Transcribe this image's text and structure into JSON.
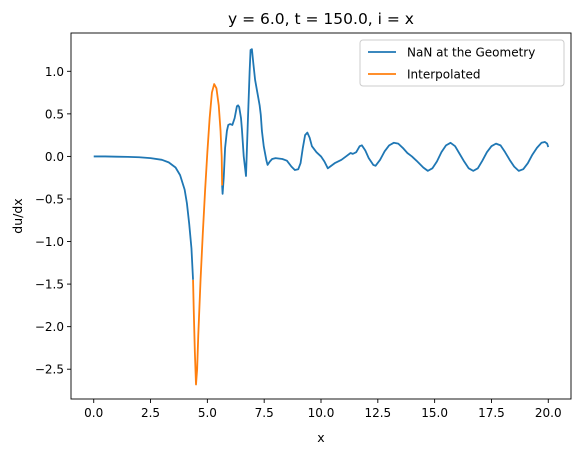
{
  "chart_data": {
    "type": "line",
    "title": "y = 6.0, t = 150.0, i = x",
    "xlabel": "x",
    "ylabel": "du/dx",
    "xlim": [
      -1.0,
      21.0
    ],
    "ylim": [
      -2.85,
      1.45
    ],
    "x_ticks": [
      0.0,
      2.5,
      5.0,
      7.5,
      10.0,
      12.5,
      15.0,
      17.5,
      20.0
    ],
    "x_tick_labels": [
      "0.0",
      "2.5",
      "5.0",
      "7.5",
      "10.0",
      "12.5",
      "15.0",
      "17.5",
      "20.0"
    ],
    "y_ticks": [
      1.0,
      0.5,
      0.0,
      -0.5,
      -1.0,
      -1.5,
      -2.0,
      -2.5
    ],
    "y_tick_labels": [
      "1.0",
      "0.5",
      "0.0",
      "−0.5",
      "−1.0",
      "−1.5",
      "−2.0",
      "−2.5"
    ],
    "grid": false,
    "legend_position": "top-right",
    "series": [
      {
        "name": "NaN at the Geometry",
        "color": "#1f77b4",
        "segments": [
          [
            [
              0.0,
              0.0
            ],
            [
              0.5,
              0.0
            ],
            [
              1.0,
              -0.003
            ],
            [
              1.5,
              -0.005
            ],
            [
              2.0,
              -0.01
            ],
            [
              2.5,
              -0.02
            ],
            [
              3.0,
              -0.04
            ],
            [
              3.3,
              -0.07
            ],
            [
              3.6,
              -0.13
            ],
            [
              3.8,
              -0.22
            ],
            [
              4.0,
              -0.39
            ],
            [
              4.1,
              -0.55
            ],
            [
              4.2,
              -0.79
            ],
            [
              4.3,
              -1.08
            ],
            [
              4.37,
              -1.45
            ]
          ],
          [
            [
              5.65,
              -0.34
            ],
            [
              5.67,
              -0.44
            ],
            [
              5.72,
              -0.25
            ],
            [
              5.78,
              0.1
            ],
            [
              5.86,
              0.3
            ],
            [
              5.92,
              0.37
            ],
            [
              6.0,
              0.38
            ],
            [
              6.1,
              0.37
            ],
            [
              6.2,
              0.45
            ],
            [
              6.3,
              0.59
            ],
            [
              6.35,
              0.6
            ],
            [
              6.4,
              0.58
            ],
            [
              6.48,
              0.45
            ],
            [
              6.52,
              0.32
            ],
            [
              6.6,
              0.0
            ],
            [
              6.7,
              -0.23
            ],
            [
              6.78,
              0.4
            ],
            [
              6.86,
              1.0
            ],
            [
              6.9,
              1.25
            ],
            [
              6.96,
              1.26
            ],
            [
              7.02,
              1.1
            ],
            [
              7.1,
              0.9
            ],
            [
              7.2,
              0.75
            ],
            [
              7.3,
              0.6
            ],
            [
              7.35,
              0.49
            ],
            [
              7.4,
              0.3
            ],
            [
              7.48,
              0.12
            ],
            [
              7.55,
              0.02
            ],
            [
              7.6,
              -0.05
            ],
            [
              7.65,
              -0.1
            ],
            [
              7.75,
              -0.06
            ],
            [
              7.85,
              -0.03
            ],
            [
              8.0,
              -0.02
            ],
            [
              8.3,
              -0.03
            ],
            [
              8.5,
              -0.05
            ],
            [
              8.7,
              -0.12
            ],
            [
              8.85,
              -0.16
            ],
            [
              9.0,
              -0.15
            ],
            [
              9.1,
              -0.08
            ],
            [
              9.2,
              0.1
            ],
            [
              9.3,
              0.25
            ],
            [
              9.4,
              0.28
            ],
            [
              9.5,
              0.22
            ],
            [
              9.6,
              0.12
            ],
            [
              9.8,
              0.05
            ],
            [
              10.0,
              0.0
            ],
            [
              10.15,
              -0.06
            ],
            [
              10.3,
              -0.14
            ],
            [
              10.4,
              -0.12
            ],
            [
              10.6,
              -0.08
            ],
            [
              10.9,
              -0.04
            ],
            [
              11.1,
              0.0
            ],
            [
              11.3,
              0.04
            ],
            [
              11.4,
              0.03
            ],
            [
              11.55,
              0.05
            ],
            [
              11.7,
              0.12
            ],
            [
              11.8,
              0.13
            ],
            [
              11.95,
              0.07
            ],
            [
              12.1,
              -0.02
            ],
            [
              12.3,
              -0.1
            ],
            [
              12.4,
              -0.11
            ],
            [
              12.6,
              -0.04
            ],
            [
              12.8,
              0.06
            ],
            [
              13.0,
              0.13
            ],
            [
              13.2,
              0.16
            ],
            [
              13.4,
              0.15
            ],
            [
              13.6,
              0.1
            ],
            [
              13.8,
              0.04
            ],
            [
              14.0,
              0.0
            ],
            [
              14.2,
              -0.05
            ],
            [
              14.5,
              -0.13
            ],
            [
              14.7,
              -0.17
            ],
            [
              14.9,
              -0.14
            ],
            [
              15.1,
              -0.06
            ],
            [
              15.3,
              0.05
            ],
            [
              15.5,
              0.13
            ],
            [
              15.7,
              0.16
            ],
            [
              15.9,
              0.12
            ],
            [
              16.1,
              0.03
            ],
            [
              16.3,
              -0.06
            ],
            [
              16.5,
              -0.14
            ],
            [
              16.7,
              -0.17
            ],
            [
              16.9,
              -0.14
            ],
            [
              17.1,
              -0.05
            ],
            [
              17.3,
              0.05
            ],
            [
              17.5,
              0.12
            ],
            [
              17.7,
              0.15
            ],
            [
              17.9,
              0.13
            ],
            [
              18.1,
              0.05
            ],
            [
              18.3,
              -0.04
            ],
            [
              18.5,
              -0.12
            ],
            [
              18.7,
              -0.17
            ],
            [
              18.9,
              -0.15
            ],
            [
              19.1,
              -0.08
            ],
            [
              19.3,
              0.02
            ],
            [
              19.5,
              0.1
            ],
            [
              19.7,
              0.16
            ],
            [
              19.85,
              0.17
            ],
            [
              19.95,
              0.15
            ],
            [
              20.0,
              0.11
            ]
          ]
        ]
      },
      {
        "name": "Interpolated",
        "color": "#ff7f0e",
        "segments": [
          [
            [
              4.37,
              -1.45
            ],
            [
              4.4,
              -1.8
            ],
            [
              4.45,
              -2.3
            ],
            [
              4.5,
              -2.68
            ],
            [
              4.55,
              -2.5
            ],
            [
              4.6,
              -2.1
            ],
            [
              4.7,
              -1.45
            ],
            [
              4.8,
              -0.9
            ],
            [
              4.9,
              -0.4
            ],
            [
              5.0,
              0.05
            ],
            [
              5.1,
              0.45
            ],
            [
              5.2,
              0.75
            ],
            [
              5.3,
              0.85
            ],
            [
              5.4,
              0.8
            ],
            [
              5.5,
              0.6
            ],
            [
              5.58,
              0.3
            ],
            [
              5.63,
              0.0
            ],
            [
              5.65,
              -0.34
            ]
          ]
        ]
      }
    ]
  }
}
